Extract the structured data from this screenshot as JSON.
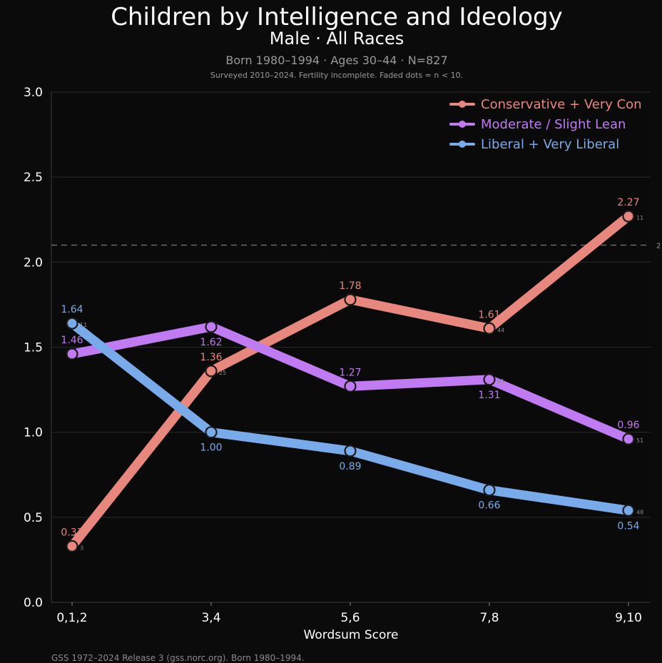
{
  "header": {
    "title": "Children by Intelligence and Ideology",
    "subtitle": "Male · All Races",
    "info": "Born 1980–1994 · Ages 30–44 · N=827",
    "note": "Surveyed 2010–2024. Fertility incomplete. Faded dots = n < 10."
  },
  "footer": {
    "source": "GSS 1972–2024 Release 3 (gss.norc.org). Born 1980–1994."
  },
  "chart_data": {
    "type": "line",
    "title": "Children by Intelligence and Ideology",
    "xlabel": "Wordsum Score",
    "ylabel": "",
    "categories": [
      "0,1,2",
      "3,4",
      "5,6",
      "7,8",
      "9,10"
    ],
    "ylim": [
      0,
      3.0
    ],
    "yticks": [
      "0.0",
      "0.5",
      "1.0",
      "1.5",
      "2.0",
      "2.5",
      "3.0"
    ],
    "grid": true,
    "legend_position": "top-right",
    "reference_line": {
      "value": 2.1,
      "label": "2"
    },
    "series": [
      {
        "name": "Conservative + Very Con",
        "color": "#e8877e",
        "values": [
          0.33,
          1.36,
          1.78,
          1.61,
          2.27
        ],
        "labels": [
          "0.33",
          "1.36",
          "1.78",
          "1.61",
          "2.27"
        ],
        "label_pos": [
          "above",
          "above",
          "above",
          "above",
          "above"
        ],
        "n": [
          "3",
          "25",
          "",
          "44",
          "11"
        ]
      },
      {
        "name": "Moderate / Slight Lean",
        "color": "#c07af2",
        "values": [
          1.46,
          1.62,
          1.27,
          1.31,
          0.96
        ],
        "labels": [
          "1.46",
          "1.62",
          "1.27",
          "1.31",
          "0.96"
        ],
        "label_pos": [
          "above",
          "below",
          "above",
          "below",
          "above"
        ],
        "n": [
          "",
          "",
          "",
          "61",
          "51"
        ]
      },
      {
        "name": "Liberal + Very Liberal",
        "color": "#79abeb",
        "values": [
          1.64,
          1.0,
          0.89,
          0.66,
          0.54
        ],
        "labels": [
          "1.64",
          "1.00",
          "0.89",
          "0.66",
          "0.54"
        ],
        "label_pos": [
          "above",
          "below",
          "below",
          "below",
          "below"
        ],
        "n": [
          "11",
          "",
          "",
          "",
          "48"
        ]
      }
    ]
  }
}
